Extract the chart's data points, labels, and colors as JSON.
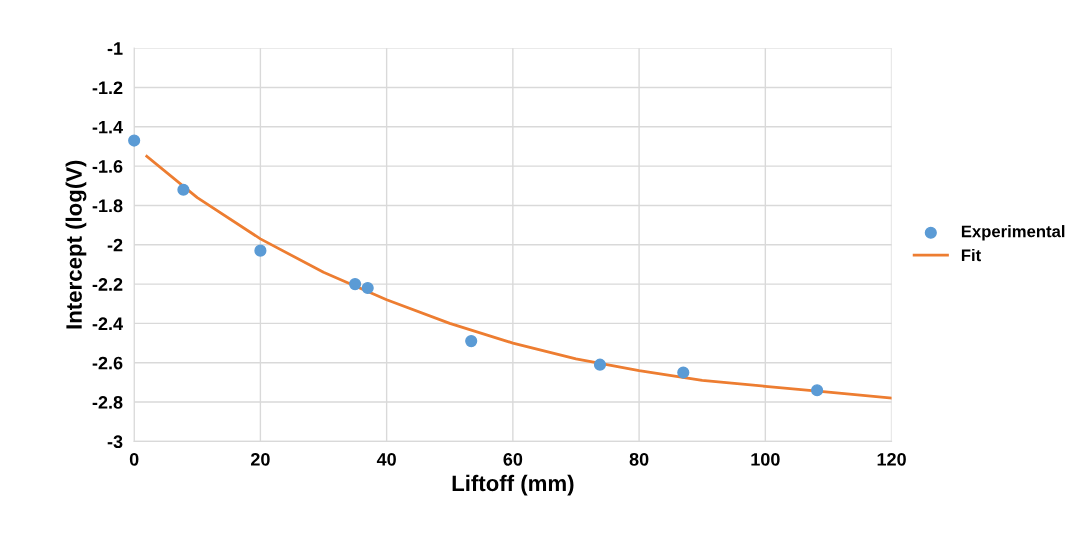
{
  "chart_data": {
    "type": "scatter",
    "xlabel": "Liftoff (mm)",
    "ylabel": "Intercept (log(V)",
    "xlim": [
      0,
      120
    ],
    "xticks": [
      0,
      20,
      40,
      60,
      80,
      100,
      120
    ],
    "ylim": [
      -3,
      -1
    ],
    "yticks": [
      -3,
      -2.8,
      -2.6,
      -2.4,
      -2.2,
      -2,
      -1.8,
      -1.6,
      -1.4,
      -1.2,
      -1
    ],
    "grid": true,
    "legend": "right",
    "series": [
      {
        "name": "Experimental",
        "marker": "circle",
        "color": "#5b9bd5",
        "x": [
          0,
          7.8,
          20,
          35,
          37,
          53.4,
          73.8,
          87,
          108.2
        ],
        "values": [
          -1.47,
          -1.72,
          -2.03,
          -2.2,
          -2.22,
          -2.49,
          -2.61,
          -2.65,
          -2.74
        ]
      },
      {
        "name": "Fit",
        "type": "line",
        "marker": "none",
        "line_style": "solid",
        "color": "#ed7d31",
        "x": [
          2,
          10,
          20,
          30,
          40,
          50,
          60,
          70,
          80,
          90,
          100,
          110,
          120
        ],
        "values": [
          -1.55,
          -1.76,
          -1.97,
          -2.14,
          -2.28,
          -2.4,
          -2.5,
          -2.58,
          -2.64,
          -2.69,
          -2.72,
          -2.75,
          -2.78
        ]
      }
    ]
  }
}
